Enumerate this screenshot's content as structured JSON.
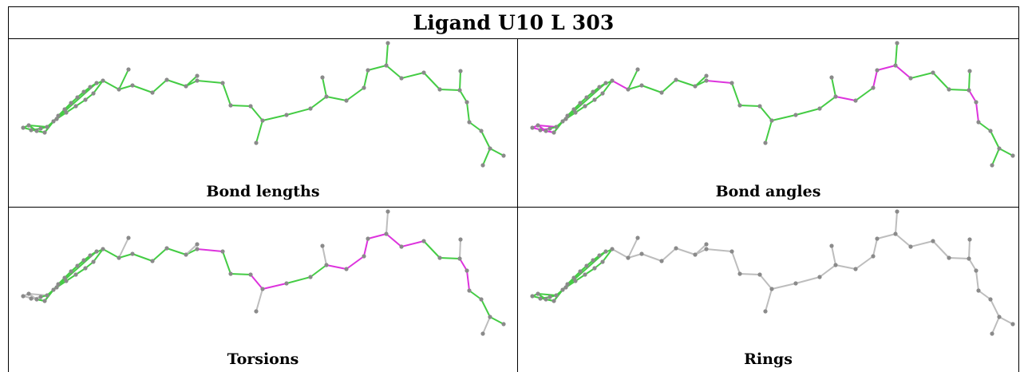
{
  "title": "Ligand U10 L 303",
  "panels": [
    {
      "id": "bond-lengths",
      "label": "Bond lengths"
    },
    {
      "id": "bond-angles",
      "label": "Bond angles"
    },
    {
      "id": "torsions",
      "label": "Torsions"
    },
    {
      "id": "rings",
      "label": "Rings"
    }
  ],
  "colors": {
    "good": "#44cc44",
    "outlier": "#dd33dd",
    "neutral": "#bdbdbd",
    "atom": "#8a8a8a",
    "border": "#000000"
  }
}
